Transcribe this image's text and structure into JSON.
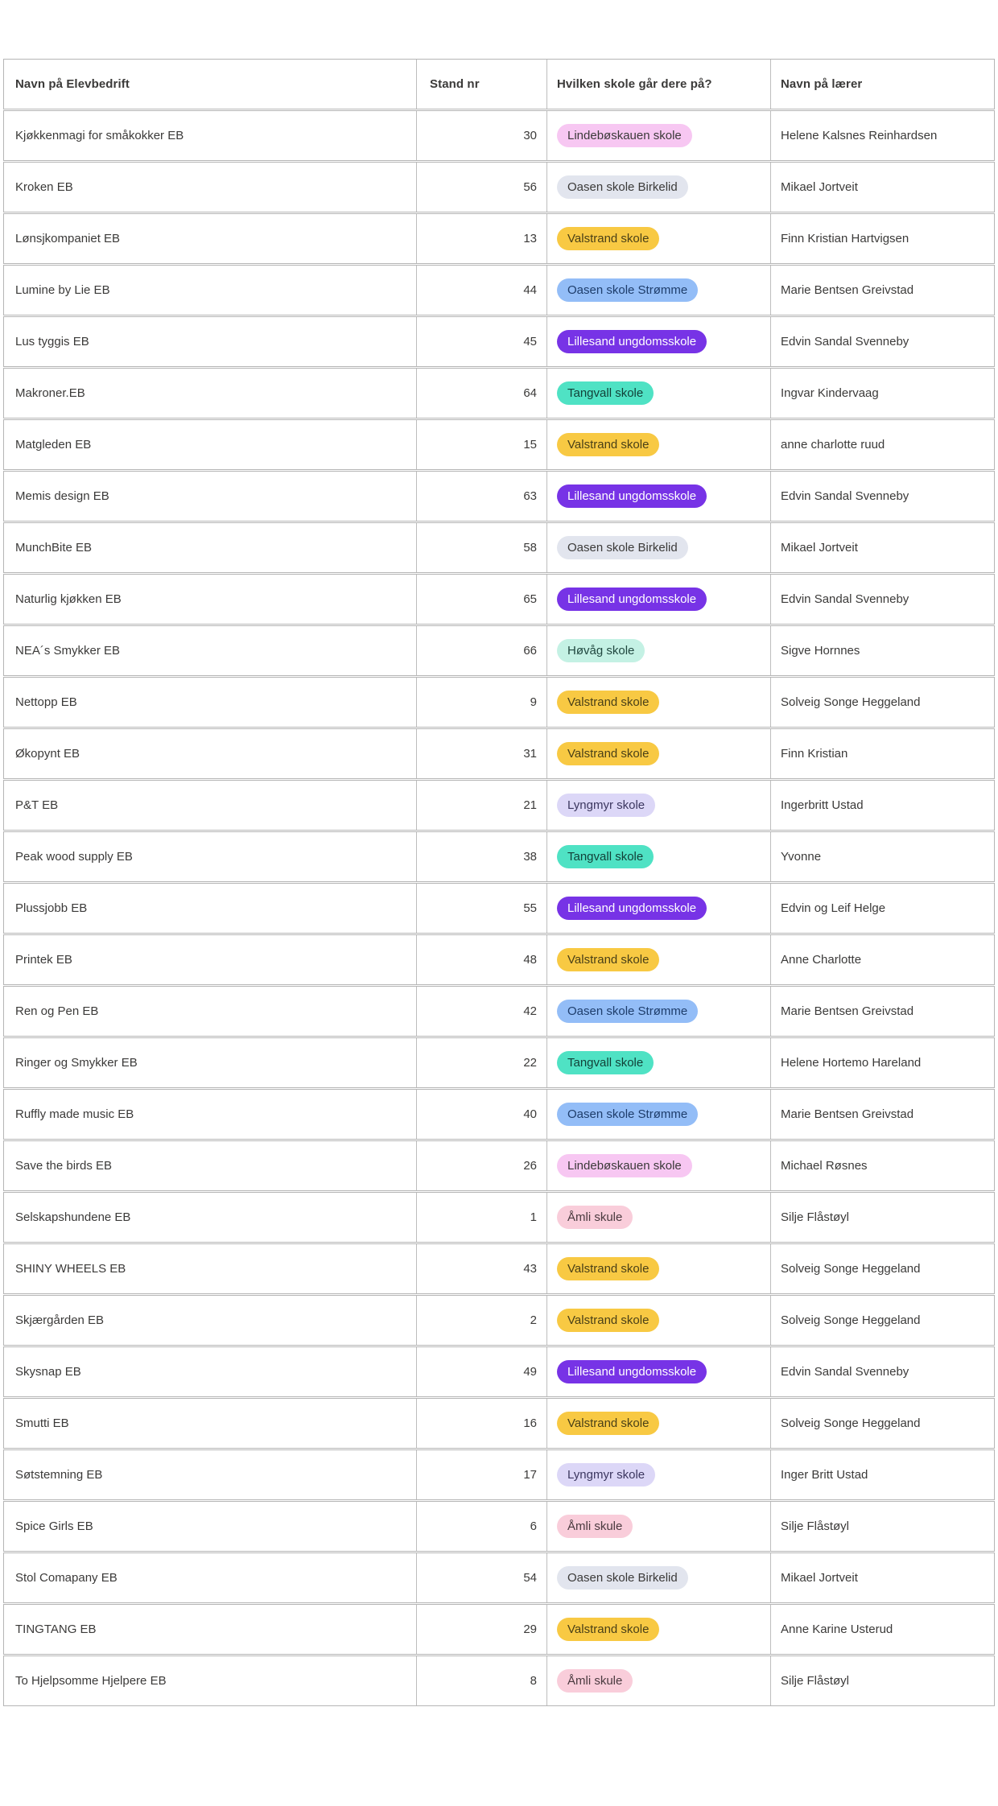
{
  "table": {
    "columns": [
      {
        "key": "name",
        "label": "Navn på Elevbedrift"
      },
      {
        "key": "stand",
        "label": "Stand nr"
      },
      {
        "key": "school",
        "label": "Hvilken skole går dere på?"
      },
      {
        "key": "teacher",
        "label": "Navn på lærer"
      }
    ],
    "school_badge_colors": {
      "Lindebøskauen skole": {
        "bg": "#f7c7f2",
        "fg": "#3b3a39"
      },
      "Oasen skole Birkelid": {
        "bg": "#e2e5ee",
        "fg": "#3b3a39"
      },
      "Valstrand skole": {
        "bg": "#f8c943",
        "fg": "#4a4017"
      },
      "Oasen skole Strømme": {
        "bg": "#93bdf7",
        "fg": "#1e3d6b"
      },
      "Lillesand ungdomsskole": {
        "bg": "#7733e6",
        "fg": "#ffffff"
      },
      "Tangvall skole": {
        "bg": "#4fe2c4",
        "fg": "#123f37"
      },
      "Høvåg skole": {
        "bg": "#c4f1e4",
        "fg": "#20473f"
      },
      "Lyngmyr skole": {
        "bg": "#dcd7f7",
        "fg": "#3c3760"
      },
      "Åmli skule": {
        "bg": "#f9cdda",
        "fg": "#4a3a3f"
      }
    },
    "rows": [
      {
        "name": "Kjøkkenmagi for småkokker EB",
        "stand": "30",
        "school": "Lindebøskauen skole",
        "teacher": "Helene Kalsnes Reinhardsen"
      },
      {
        "name": "Kroken EB",
        "stand": "56",
        "school": "Oasen skole Birkelid",
        "teacher": "Mikael Jortveit"
      },
      {
        "name": "Lønsjkompaniet EB",
        "stand": "13",
        "school": "Valstrand skole",
        "teacher": "Finn Kristian Hartvigsen"
      },
      {
        "name": "Lumine by Lie EB",
        "stand": "44",
        "school": "Oasen skole Strømme",
        "teacher": "Marie Bentsen Greivstad"
      },
      {
        "name": "Lus tyggis EB",
        "stand": "45",
        "school": "Lillesand ungdomsskole",
        "teacher": "Edvin Sandal Svenneby"
      },
      {
        "name": "Makroner.EB",
        "stand": "64",
        "school": "Tangvall skole",
        "teacher": "Ingvar Kindervaag"
      },
      {
        "name": "Matgleden EB",
        "stand": "15",
        "school": "Valstrand skole",
        "teacher": "anne charlotte ruud"
      },
      {
        "name": "Memis design EB",
        "stand": "63",
        "school": "Lillesand ungdomsskole",
        "teacher": "Edvin Sandal Svenneby"
      },
      {
        "name": "MunchBite EB",
        "stand": "58",
        "school": "Oasen skole Birkelid",
        "teacher": "Mikael Jortveit"
      },
      {
        "name": "Naturlig kjøkken EB",
        "stand": "65",
        "school": "Lillesand ungdomsskole",
        "teacher": "Edvin Sandal Svenneby"
      },
      {
        "name": "NEA´s Smykker EB",
        "stand": "66",
        "school": "Høvåg skole",
        "teacher": "Sigve Hornnes"
      },
      {
        "name": "Nettopp EB",
        "stand": "9",
        "school": "Valstrand skole",
        "teacher": "Solveig Songe Heggeland"
      },
      {
        "name": "Økopynt EB",
        "stand": "31",
        "school": "Valstrand skole",
        "teacher": "Finn Kristian"
      },
      {
        "name": "P&T EB",
        "stand": "21",
        "school": "Lyngmyr skole",
        "teacher": "Ingerbritt Ustad"
      },
      {
        "name": "Peak wood supply EB",
        "stand": "38",
        "school": "Tangvall skole",
        "teacher": "Yvonne"
      },
      {
        "name": "Plussjobb EB",
        "stand": "55",
        "school": "Lillesand ungdomsskole",
        "teacher": "Edvin og Leif Helge"
      },
      {
        "name": "Printek EB",
        "stand": "48",
        "school": "Valstrand skole",
        "teacher": "Anne Charlotte"
      },
      {
        "name": "Ren og Pen EB",
        "stand": "42",
        "school": "Oasen skole Strømme",
        "teacher": "Marie Bentsen Greivstad"
      },
      {
        "name": "Ringer og Smykker EB",
        "stand": "22",
        "school": "Tangvall skole",
        "teacher": "Helene Hortemo Hareland"
      },
      {
        "name": "Ruffly made music EB",
        "stand": "40",
        "school": "Oasen skole Strømme",
        "teacher": "Marie Bentsen Greivstad"
      },
      {
        "name": "Save the birds EB",
        "stand": "26",
        "school": "Lindebøskauen skole",
        "teacher": "Michael Røsnes"
      },
      {
        "name": "Selskapshundene EB",
        "stand": "1",
        "school": "Åmli skule",
        "teacher": "Silje Flåstøyl"
      },
      {
        "name": "SHINY WHEELS EB",
        "stand": "43",
        "school": "Valstrand skole",
        "teacher": "Solveig Songe Heggeland"
      },
      {
        "name": "Skjærgården EB",
        "stand": "2",
        "school": "Valstrand skole",
        "teacher": "Solveig Songe Heggeland"
      },
      {
        "name": "Skysnap EB",
        "stand": "49",
        "school": "Lillesand ungdomsskole",
        "teacher": "Edvin Sandal Svenneby"
      },
      {
        "name": "Smutti EB",
        "stand": "16",
        "school": "Valstrand skole",
        "teacher": "Solveig Songe Heggeland"
      },
      {
        "name": "Søtstemning EB",
        "stand": "17",
        "school": "Lyngmyr skole",
        "teacher": "Inger Britt Ustad"
      },
      {
        "name": "Spice Girls EB",
        "stand": "6",
        "school": "Åmli skule",
        "teacher": "Silje Flåstøyl"
      },
      {
        "name": "Stol Comapany EB",
        "stand": "54",
        "school": "Oasen skole Birkelid",
        "teacher": "Mikael Jortveit"
      },
      {
        "name": "TINGTANG EB",
        "stand": "29",
        "school": "Valstrand skole",
        "teacher": "Anne Karine Usterud"
      },
      {
        "name": "To Hjelpsomme Hjelpere EB",
        "stand": "8",
        "school": "Åmli skule",
        "teacher": "Silje Flåstøyl"
      }
    ]
  }
}
